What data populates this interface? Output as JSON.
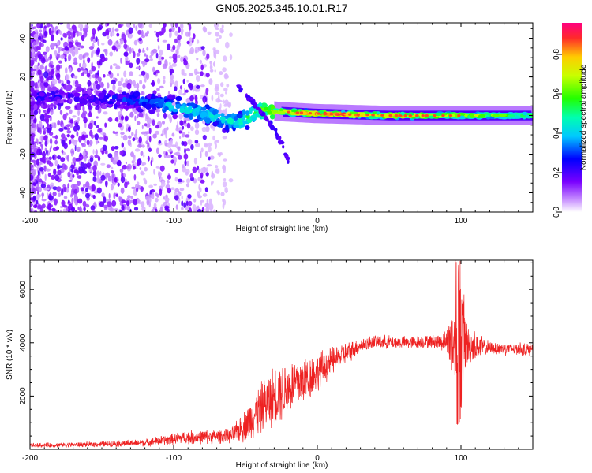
{
  "title": "GN05.2025.345.10.01.R17",
  "colorbar": {
    "label": "Normalized spectral amplitude",
    "ticks": [
      "0.0",
      "0.2",
      "0.4",
      "0.6",
      "0.8"
    ],
    "tick_values": [
      0.0,
      0.2,
      0.4,
      0.6,
      0.8
    ],
    "range": [
      0,
      0.96
    ]
  },
  "chart_data": [
    {
      "type": "heatmap",
      "name": "spectrogram",
      "xlabel": "Height of straight line (km)",
      "ylabel": "Frequency (Hz)",
      "xlim": [
        -200,
        150
      ],
      "ylim": [
        -50,
        48
      ],
      "xticks": [
        -200,
        -100,
        0,
        100
      ],
      "xtick_labels": [
        "-200",
        "-100",
        "0",
        "100"
      ],
      "yticks": [
        -40,
        -20,
        0,
        20,
        40
      ],
      "ytick_labels": [
        "-40",
        "-20",
        "0",
        "20",
        "40"
      ],
      "ridge": {
        "x": [
          -200,
          -160,
          -130,
          -110,
          -90,
          -70,
          -55,
          -40,
          -25,
          0,
          50,
          100,
          150
        ],
        "freq_hz": [
          10,
          9,
          8,
          6,
          3,
          -1,
          -4,
          3,
          2,
          1,
          0,
          0,
          0
        ],
        "amplitude": [
          0.22,
          0.22,
          0.3,
          0.38,
          0.45,
          0.45,
          0.5,
          0.6,
          0.85,
          0.92,
          0.9,
          0.75,
          0.6
        ]
      },
      "tail_trace": {
        "x": [
          -55,
          -45,
          -35,
          -25,
          -20
        ],
        "freq_hz": [
          15,
          7,
          -2,
          -14,
          -24
        ]
      }
    },
    {
      "type": "line",
      "name": "snr",
      "xlabel": "Height of straight line (km)",
      "ylabel": "SNR (10 * v/v)",
      "xlim": [
        -200,
        150
      ],
      "ylim": [
        0,
        7100
      ],
      "xticks": [
        -200,
        -100,
        0,
        100
      ],
      "xtick_labels": [
        "-200",
        "-100",
        "0",
        "100"
      ],
      "yticks": [
        2000,
        4000,
        6000
      ],
      "ytick_labels": [
        "2000",
        "4000",
        "6000"
      ],
      "color": "#ee2222",
      "envelope": {
        "x": [
          -200,
          -160,
          -120,
          -90,
          -60,
          -50,
          -40,
          -30,
          -20,
          -10,
          0,
          10,
          20,
          30,
          40,
          60,
          80,
          90,
          95,
          100,
          105,
          120,
          150
        ],
        "mean": [
          150,
          180,
          250,
          450,
          500,
          900,
          1500,
          2000,
          2300,
          2600,
          2900,
          3300,
          3600,
          3900,
          4050,
          4000,
          4050,
          4050,
          4000,
          4100,
          3900,
          3800,
          3750
        ],
        "noise": [
          80,
          90,
          130,
          250,
          250,
          600,
          900,
          1100,
          1000,
          900,
          700,
          500,
          400,
          250,
          250,
          230,
          230,
          400,
          1800,
          2600,
          700,
          230,
          230
        ]
      }
    }
  ]
}
